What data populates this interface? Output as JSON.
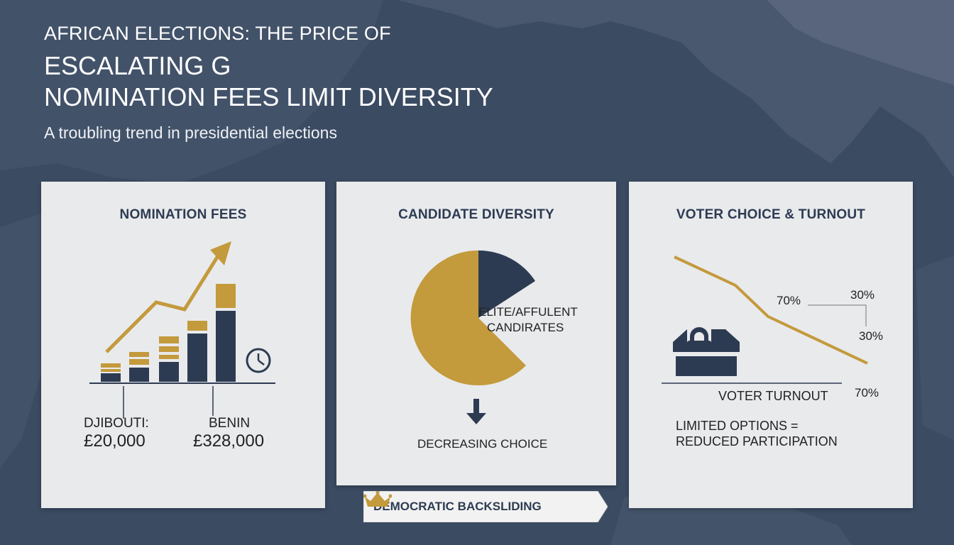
{
  "header": {
    "line1": "AFRICAN ELECTIONS:  THE PRICE OF",
    "line2": "ESCALATING G",
    "line3": "NOMINATION FEES LIMIT DIVERSITY",
    "subtitle": "A troubling trend in presidential elections"
  },
  "panels": {
    "fees": {
      "title": "NOMINATION FEES",
      "low_country": "DJIBOUTI:",
      "low_value": "£20,000",
      "high_country": "BENIN",
      "high_value": "£328,000",
      "icons": [
        "upward-trend-arrow-icon",
        "clock-icon"
      ]
    },
    "diversity": {
      "title": "CANDIDATE DIVERSITY",
      "slice_label_line1": "ELITE/AFFULENT",
      "slice_label_line2": "CANDIRATES",
      "caption": "DECREASING CHOICE",
      "elite_share": 0.2,
      "icons": [
        "down-arrow-icon"
      ]
    },
    "voter": {
      "title": "VOTER CHOICE & TURNOUT",
      "label_a": "70%",
      "label_b": "30%",
      "label_c": "30%",
      "axis_label": "VOTER TURNOUT",
      "axis_value": "70%",
      "caption_line1": "LIMITED OPTIONS =",
      "caption_line2": "REDUCED PARTICIPATION",
      "icons": [
        "locked-ballot-box-icon"
      ]
    }
  },
  "banner": {
    "label": "DEMOCRATIC BACKSLIDING",
    "icon": "crown-icon"
  },
  "colors": {
    "gold": "#c39a3c",
    "navy": "#2d3b52",
    "panel": "#e9eaec",
    "background": "#3a4a60"
  }
}
